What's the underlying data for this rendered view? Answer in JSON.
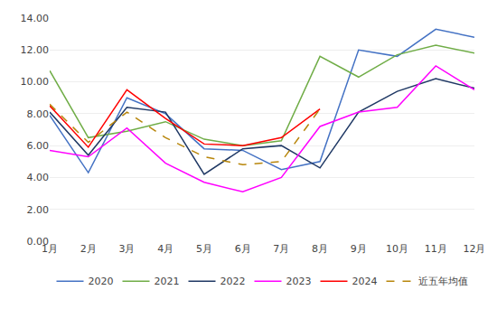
{
  "chart_data": {
    "type": "line",
    "categories": [
      "1月",
      "2月",
      "3月",
      "4月",
      "5月",
      "6月",
      "7月",
      "8月",
      "9月",
      "10月",
      "11月",
      "12月"
    ],
    "series": [
      {
        "name": "2020",
        "color": "#4472C4",
        "line_style": "solid",
        "values": [
          7.9,
          4.3,
          9.0,
          8.0,
          5.8,
          5.7,
          4.5,
          5.0,
          12.0,
          11.6,
          13.3,
          12.8
        ]
      },
      {
        "name": "2021",
        "color": "#70AD47",
        "line_style": "solid",
        "values": [
          10.7,
          6.5,
          6.9,
          7.5,
          6.4,
          6.0,
          6.3,
          11.6,
          10.3,
          11.7,
          12.3,
          11.8
        ]
      },
      {
        "name": "2022",
        "color": "#1F3864",
        "line_style": "solid",
        "values": [
          8.1,
          5.4,
          8.4,
          8.1,
          4.2,
          5.8,
          6.0,
          4.6,
          8.1,
          9.4,
          10.2,
          9.6
        ]
      },
      {
        "name": "2023",
        "color": "#FF00FF",
        "line_style": "solid",
        "values": [
          5.7,
          5.3,
          7.1,
          4.9,
          3.7,
          3.1,
          4.0,
          7.2,
          8.1,
          8.4,
          11.0,
          9.5
        ]
      },
      {
        "name": "2024",
        "color": "#FF0000",
        "line_style": "solid",
        "values": [
          8.5,
          5.9,
          9.5,
          7.7,
          6.1,
          6.0,
          6.5,
          8.3,
          null,
          null,
          null,
          null
        ]
      },
      {
        "name": "近五年均值",
        "color": "#B8860B",
        "line_style": "dashed",
        "values": [
          8.6,
          6.2,
          8.1,
          6.5,
          5.3,
          4.8,
          5.0,
          8.3,
          null,
          null,
          null,
          null
        ]
      }
    ],
    "ylim": [
      0.0,
      14.0
    ],
    "yticks": [
      {
        "value": 0,
        "label": "0.00"
      },
      {
        "value": 2,
        "label": "2.00"
      },
      {
        "value": 4,
        "label": "4.00"
      },
      {
        "value": 6,
        "label": "6.00"
      },
      {
        "value": 8,
        "label": "8.00"
      },
      {
        "value": 10,
        "label": "10.00"
      },
      {
        "value": 12,
        "label": "12.00"
      },
      {
        "value": 14,
        "label": "14.00"
      }
    ],
    "grid": true,
    "legend": "bottom"
  }
}
